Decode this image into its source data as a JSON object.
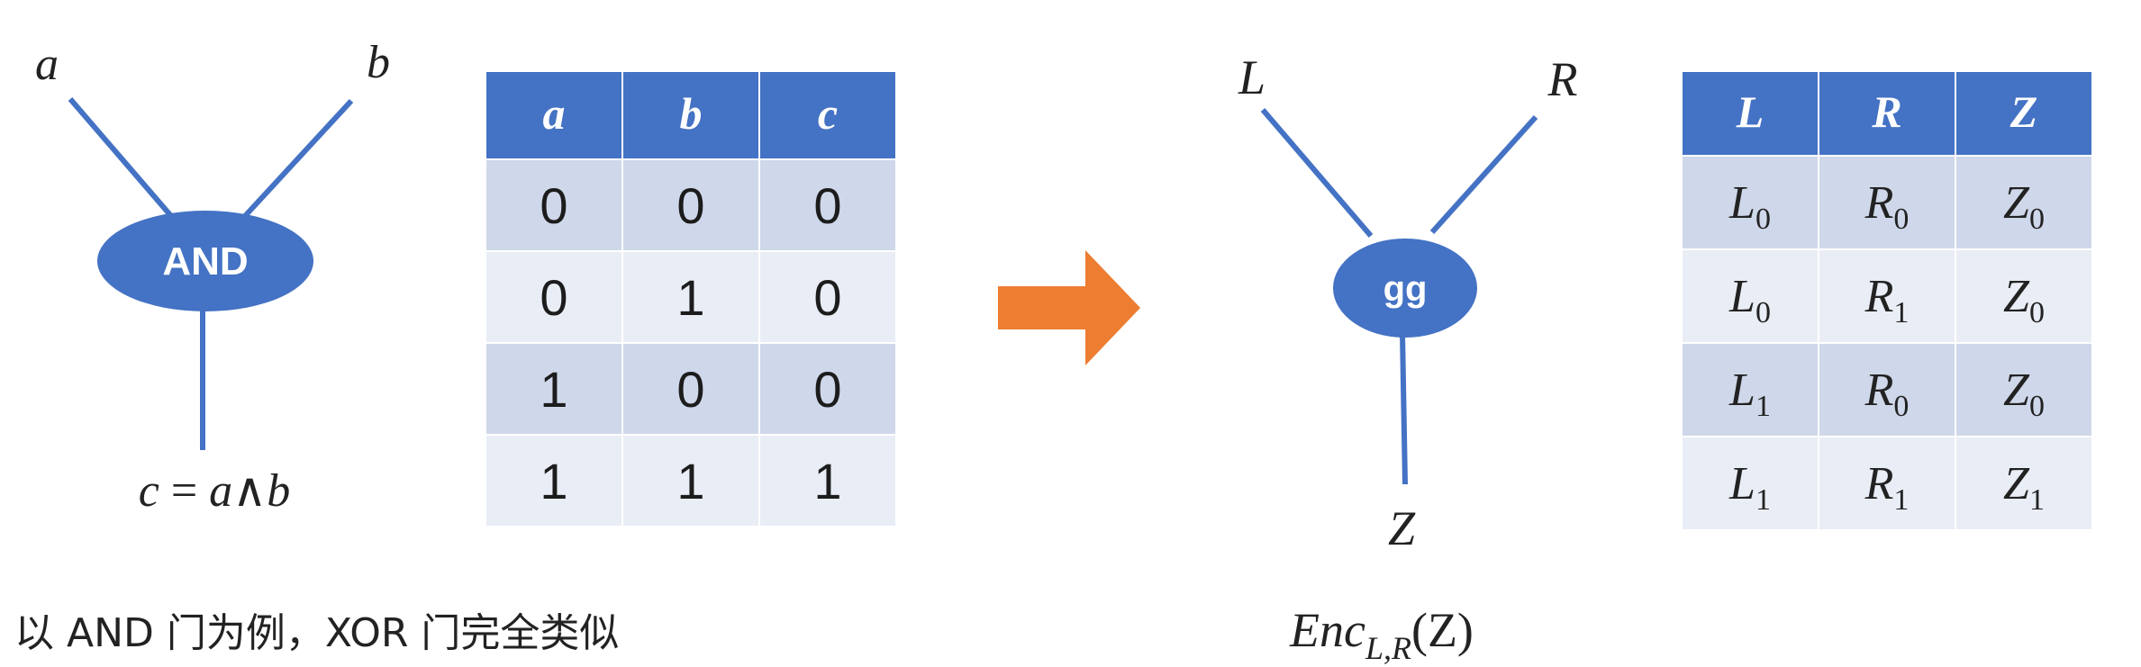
{
  "colors": {
    "wire": "#4472c4",
    "gate_fill": "#4472c4",
    "header_fill": "#4472c4",
    "row_odd": "#cfd8ea",
    "row_even": "#e9edf5",
    "arrow": "#ed7d31",
    "text": "#222222"
  },
  "left_gate": {
    "label": "AND",
    "input_a": "a",
    "input_b": "b",
    "output": {
      "c": "c",
      "eq": " = ",
      "a": "a",
      "op": "∧",
      "b": "b"
    }
  },
  "truth_table": {
    "headers": [
      "a",
      "b",
      "c"
    ],
    "rows": [
      [
        "0",
        "0",
        "0"
      ],
      [
        "0",
        "1",
        "0"
      ],
      [
        "1",
        "0",
        "0"
      ],
      [
        "1",
        "1",
        "1"
      ]
    ]
  },
  "arrow_icon": "right-arrow-icon",
  "right_gate": {
    "label": "gg",
    "input_l": "L",
    "input_r": "R",
    "output": "Z"
  },
  "garbled_table": {
    "headers": [
      "L",
      "R",
      "Z"
    ],
    "rows": [
      [
        {
          "base": "L",
          "sub": "0"
        },
        {
          "base": "R",
          "sub": "0"
        },
        {
          "base": "Z",
          "sub": "0"
        }
      ],
      [
        {
          "base": "L",
          "sub": "0"
        },
        {
          "base": "R",
          "sub": "1"
        },
        {
          "base": "Z",
          "sub": "0"
        }
      ],
      [
        {
          "base": "L",
          "sub": "1"
        },
        {
          "base": "R",
          "sub": "0"
        },
        {
          "base": "Z",
          "sub": "0"
        }
      ],
      [
        {
          "base": "L",
          "sub": "1"
        },
        {
          "base": "R",
          "sub": "1"
        },
        {
          "base": "Z",
          "sub": "1"
        }
      ]
    ]
  },
  "caption_left": "以 AND 门为例，XOR 门完全类似",
  "caption_right": {
    "enc": "Enc",
    "sub": "L,R",
    "arg": "(Z)"
  }
}
